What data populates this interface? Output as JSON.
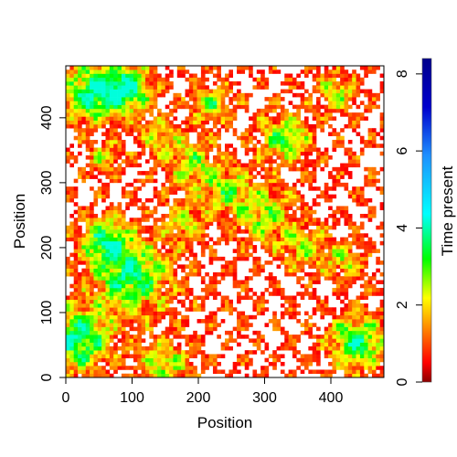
{
  "chart_data": {
    "type": "heatmap",
    "title": "",
    "xlabel": "Position",
    "ylabel": "Position",
    "xlim": [
      0,
      480
    ],
    "ylim": [
      0,
      480
    ],
    "x_ticks": [
      0,
      100,
      200,
      300,
      400
    ],
    "y_ticks": [
      0,
      100,
      200,
      300,
      400
    ],
    "colorbar": {
      "label": "Time present",
      "range": [
        0,
        8.4
      ],
      "ticks": [
        0,
        2,
        4,
        6,
        8
      ],
      "colormap": [
        "#8b0000",
        "#ff0000",
        "#ff8c00",
        "#ffff00",
        "#00ff00",
        "#00ffff",
        "#1e90ff",
        "#0000cd",
        "#00008b"
      ]
    },
    "hotspots": [
      {
        "x": 40,
        "y": 440,
        "r": 55,
        "value": 3.6
      },
      {
        "x": 95,
        "y": 445,
        "r": 45,
        "value": 3.3
      },
      {
        "x": 20,
        "y": 60,
        "r": 60,
        "value": 3.5
      },
      {
        "x": 100,
        "y": 155,
        "r": 70,
        "value": 3.2
      },
      {
        "x": 60,
        "y": 210,
        "r": 45,
        "value": 2.9
      },
      {
        "x": 440,
        "y": 55,
        "r": 50,
        "value": 3.4
      },
      {
        "x": 330,
        "y": 370,
        "r": 45,
        "value": 2.8
      },
      {
        "x": 220,
        "y": 420,
        "r": 35,
        "value": 2.4
      },
      {
        "x": 300,
        "y": 250,
        "r": 55,
        "value": 2.3
      },
      {
        "x": 240,
        "y": 290,
        "r": 45,
        "value": 2.1
      },
      {
        "x": 190,
        "y": 330,
        "r": 45,
        "value": 2.0
      },
      {
        "x": 150,
        "y": 20,
        "r": 45,
        "value": 2.3
      },
      {
        "x": 420,
        "y": 180,
        "r": 35,
        "value": 1.9
      },
      {
        "x": 410,
        "y": 440,
        "r": 35,
        "value": 2.1
      },
      {
        "x": 360,
        "y": 200,
        "r": 40,
        "value": 1.9
      },
      {
        "x": 180,
        "y": 240,
        "r": 40,
        "value": 1.7
      },
      {
        "x": 140,
        "y": 370,
        "r": 35,
        "value": 1.8
      },
      {
        "x": 60,
        "y": 340,
        "r": 30,
        "value": 1.7
      }
    ]
  }
}
